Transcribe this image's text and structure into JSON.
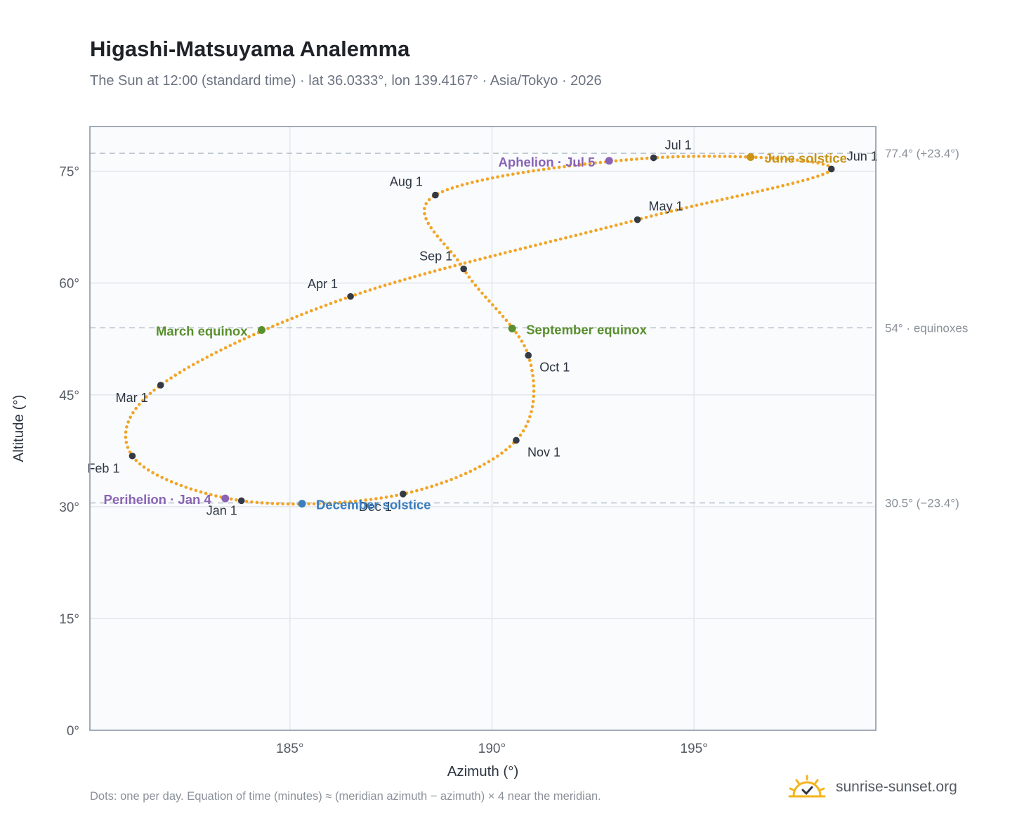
{
  "title": "Higashi-Matsuyama Analemma",
  "subtitle": "The Sun at 12:00 (standard time) · lat 36.0333°, lon 139.4167° · Asia/Tokyo · 2026",
  "footnote": "Dots: one per day. Equation of time (minutes) ≈ (meridian azimuth − azimuth) × 4 near the meridian.",
  "brand": {
    "name": "sunrise-sunset.org",
    "icon": "sun-logo-icon"
  },
  "colors": {
    "curve": "#f2a425",
    "month_marker": "#333a44",
    "equinox": "#5a8f2e",
    "june_solstice": "#c99316",
    "december_solstice": "#3a7ebf",
    "apsis": "#8a63b5",
    "reference_line": "#b8bfc9",
    "plot_background": "#f9fbfd",
    "grid": "#e3e7ec"
  },
  "chart_data": {
    "type": "scatter",
    "xlabel": "Azimuth (°)",
    "ylabel": "Altitude (°)",
    "xlim": [
      180.05,
      199.5
    ],
    "ylim": [
      0,
      81
    ],
    "x_ticks": [
      185,
      190,
      195
    ],
    "x_tick_labels": [
      "185°",
      "190°",
      "195°"
    ],
    "y_ticks": [
      0,
      15,
      30,
      45,
      60,
      75
    ],
    "y_tick_labels": [
      "0°",
      "15°",
      "30°",
      "45°",
      "60°",
      "75°"
    ],
    "grid": true,
    "reference_lines": [
      {
        "altitude": 77.4,
        "label": "77.4° (+23.4°)"
      },
      {
        "altitude": 54.0,
        "label": "54° · equinoxes"
      },
      {
        "altitude": 30.5,
        "label": "30.5° (−23.4°)"
      }
    ],
    "month_markers": [
      {
        "label": "Jan 1",
        "az": 183.8,
        "alt": 30.8
      },
      {
        "label": "Feb 1",
        "az": 181.1,
        "alt": 36.8
      },
      {
        "label": "Mar 1",
        "az": 181.8,
        "alt": 46.3
      },
      {
        "label": "Apr 1",
        "az": 186.5,
        "alt": 58.2
      },
      {
        "label": "May 1",
        "az": 193.6,
        "alt": 68.5
      },
      {
        "label": "Jun 1",
        "az": 198.4,
        "alt": 75.3
      },
      {
        "label": "Jul 1",
        "az": 194.0,
        "alt": 76.8
      },
      {
        "label": "Aug 1",
        "az": 188.6,
        "alt": 71.8
      },
      {
        "label": "Sep 1",
        "az": 189.3,
        "alt": 61.9
      },
      {
        "label": "Oct 1",
        "az": 190.9,
        "alt": 50.3
      },
      {
        "label": "Nov 1",
        "az": 190.6,
        "alt": 38.9
      },
      {
        "label": "Dec 1",
        "az": 187.8,
        "alt": 31.7
      }
    ],
    "events": [
      {
        "label": "March equinox",
        "az": 184.3,
        "alt": 53.7,
        "kind": "equinox"
      },
      {
        "label": "June solstice",
        "az": 196.4,
        "alt": 76.9,
        "kind": "june_solstice"
      },
      {
        "label": "September equinox",
        "az": 190.5,
        "alt": 53.9,
        "kind": "equinox"
      },
      {
        "label": "December solstice",
        "az": 185.3,
        "alt": 30.4,
        "kind": "december_solstice"
      },
      {
        "label": "Perihelion · Jan 4",
        "az": 183.4,
        "alt": 31.1,
        "kind": "apsis"
      },
      {
        "label": "Aphelion · Jul 5",
        "az": 192.9,
        "alt": 76.4,
        "kind": "apsis"
      }
    ]
  }
}
